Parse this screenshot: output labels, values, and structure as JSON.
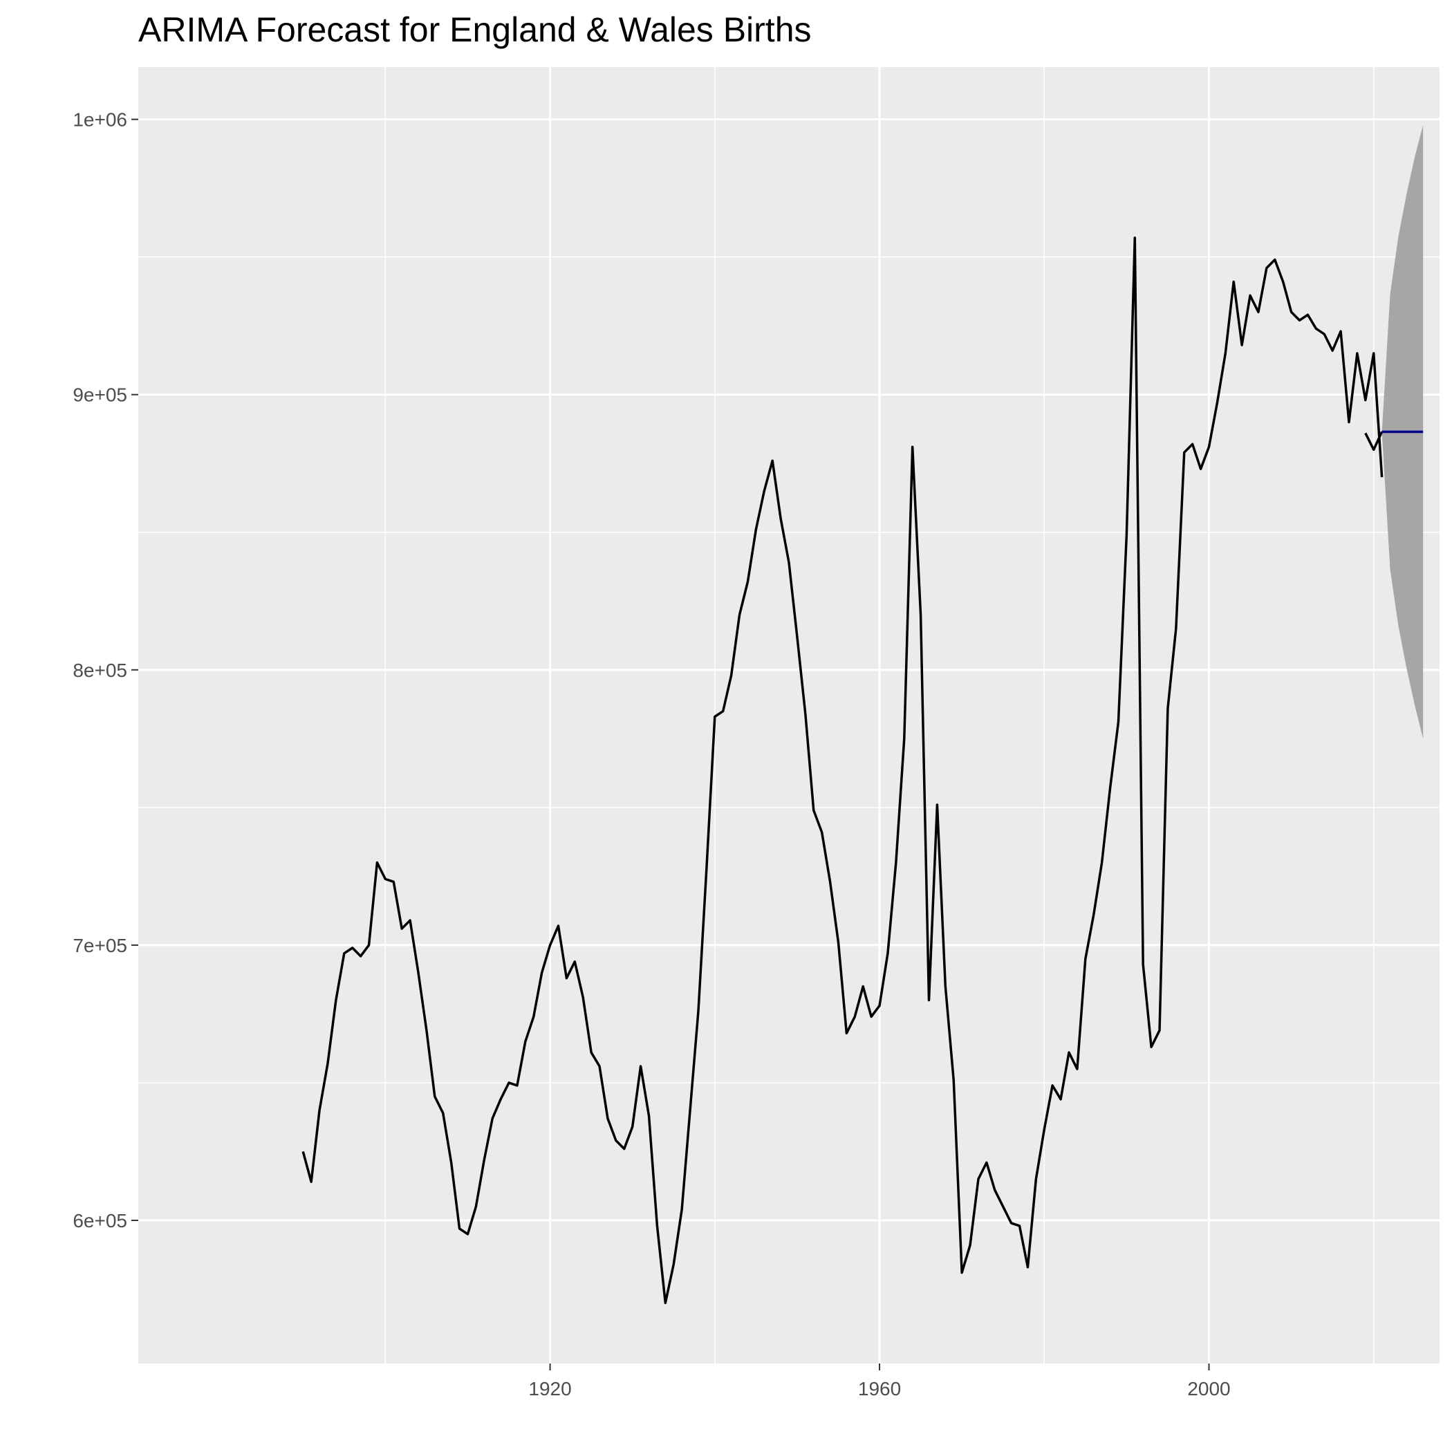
{
  "chart_data": {
    "type": "line",
    "title": "ARIMA Forecast for England & Wales Births",
    "xlabel": "",
    "ylabel": "",
    "xlim": [
      1870,
      2028
    ],
    "ylim": [
      548000,
      1019000
    ],
    "x_ticks": [
      1920,
      1960,
      2000
    ],
    "x_tick_labels": [
      "1920",
      "1960",
      "2000"
    ],
    "x_minor_ticks": [
      1900,
      1940,
      1980,
      2020
    ],
    "y_ticks": [
      600000,
      700000,
      800000,
      900000,
      1000000
    ],
    "y_tick_labels": [
      "6e+05",
      "7e+05",
      "8e+05",
      "9e+05",
      "1e+06"
    ],
    "y_minor_ticks": [
      650000,
      750000,
      850000,
      950000
    ],
    "grid": true,
    "colors": {
      "panel_background": "#ebebeb",
      "grid_line": "#ffffff",
      "series_line": "#000000",
      "forecast_line": "#00008b",
      "interval_fill": "#a6a6a6"
    },
    "series": [
      {
        "type": "line",
        "x": [
          1890,
          1891,
          1892,
          1893,
          1894,
          1895,
          1896,
          1897,
          1898,
          1899,
          1900,
          1901,
          1902,
          1903,
          1904,
          1905,
          1906,
          1907,
          1908,
          1909,
          1910,
          1911,
          1912,
          1913,
          1914,
          1915,
          1916,
          1917,
          1918,
          1919,
          1920,
          1921,
          1922,
          1923,
          1924,
          1925,
          1926,
          1927,
          1928,
          1929,
          1930,
          1931,
          1932,
          1933,
          1934,
          1935,
          1936,
          1937,
          1938,
          1939,
          1940,
          1941,
          1942,
          1943,
          1944,
          1945,
          1946,
          1947,
          1948,
          1949,
          1950,
          1951,
          1952,
          1953,
          1954,
          1955,
          1956,
          1957,
          1958,
          1959,
          1960,
          1961,
          1962,
          1963,
          1964,
          1965,
          1966,
          1967,
          1968,
          1969,
          1970,
          1971,
          1972,
          1973,
          1974,
          1975,
          1976,
          1977,
          1978,
          1979,
          1980,
          1981,
          1982,
          1983,
          1984,
          1985,
          1986,
          1987,
          1988,
          1989,
          1990,
          1991,
          1992,
          1993,
          1994,
          1995,
          1996,
          1997,
          1998,
          1999,
          2000,
          2001,
          2002,
          2003,
          2004,
          2005,
          2006,
          2007,
          2008,
          2009,
          2010,
          2011,
          2012,
          2013,
          2014,
          2015,
          2016,
          2017,
          2018,
          2019,
          2020,
          2021
        ],
        "y": [
          625000,
          614000,
          640000,
          657000,
          680000,
          697000,
          699000,
          696000,
          700000,
          730000,
          724000,
          723000,
          706000,
          709000,
          690000,
          669000,
          645000,
          639000,
          621000,
          597000,
          595000,
          605000,
          622000,
          637000,
          644000,
          650000,
          649000,
          665000,
          674000,
          690000,
          700000,
          707000,
          688000,
          694000,
          681000,
          661000,
          656000,
          637000,
          629000,
          626000,
          634000,
          656000,
          638000,
          598000,
          570000,
          584000,
          604000,
          640000,
          676000,
          728000,
          783000,
          785000,
          798000,
          820000,
          832000,
          851000,
          865000,
          876000,
          855000,
          839000,
          812000,
          784000,
          749000,
          741000,
          723000,
          701000,
          668000,
          674000,
          685000,
          674000,
          678000,
          697000,
          730000,
          775000,
          881000,
          820000,
          680000,
          751000,
          685000,
          651000,
          581000,
          591000,
          615000,
          621000,
          611000,
          605000,
          599000,
          598000,
          583000,
          615000,
          633000,
          649000,
          644000,
          661000,
          655000,
          695000,
          711000,
          730000,
          757000,
          781000,
          849000,
          957000,
          693000,
          663000,
          669000,
          786000,
          815000,
          879000,
          882000,
          873000,
          881000,
          897000,
          915000,
          941000,
          918000,
          936000,
          930000,
          946000,
          949000,
          941000,
          930000,
          927000,
          929000,
          924000,
          922000,
          916000,
          923000,
          890000,
          915000,
          898000,
          915000,
          870000
        ],
        "extra_x": [
          2019,
          2020,
          2021
        ],
        "extra_y": [
          886000,
          880000,
          886500
        ]
      }
    ],
    "forecast": {
      "x": [
        2021,
        2022,
        2023,
        2024,
        2025,
        2026
      ],
      "mean": [
        886500,
        886500,
        886500,
        886500,
        886500,
        886500
      ],
      "lower": [
        886500,
        836500,
        816000,
        800500,
        787000,
        775000
      ],
      "upper": [
        886500,
        936500,
        957500,
        973000,
        986500,
        998000
      ]
    }
  }
}
